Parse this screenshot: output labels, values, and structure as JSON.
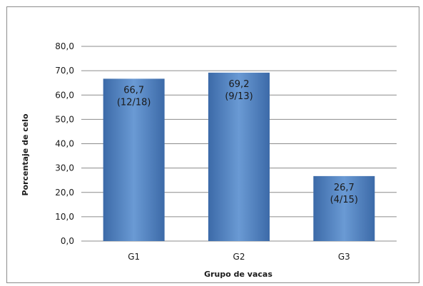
{
  "chart_data": {
    "type": "bar",
    "title": "",
    "xlabel": "Grupo de vacas",
    "ylabel": "Porcentaje de celo",
    "categories": [
      "G1",
      "G2",
      "G3"
    ],
    "values": [
      66.7,
      69.2,
      26.7
    ],
    "data_labels": [
      {
        "value": "66,7",
        "fraction": "(12/18)"
      },
      {
        "value": "69,2",
        "fraction": "(9/13)"
      },
      {
        "value": "26,7",
        "fraction": "(4/15)"
      }
    ],
    "ylim": [
      0,
      80
    ],
    "yticks": [
      "0,0",
      "10,0",
      "20,0",
      "30,0",
      "40,0",
      "50,0",
      "60,0",
      "70,0",
      "80,0"
    ],
    "ytick_values": [
      0,
      10,
      20,
      30,
      40,
      50,
      60,
      70,
      80
    ],
    "grid": true,
    "legend": "none",
    "colors": {
      "bar": "#4f81bd",
      "bar_light": "#6a9ad4",
      "bar_dark": "#3c6aa8",
      "grid": "#8c8c8c"
    }
  }
}
